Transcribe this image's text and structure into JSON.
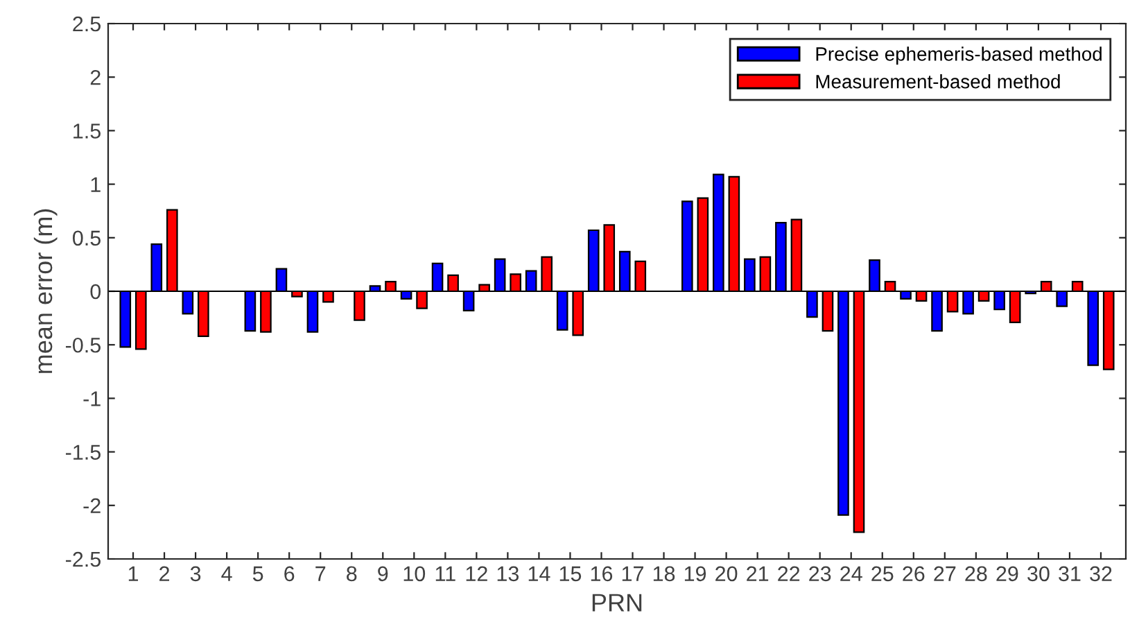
{
  "chart_data": {
    "type": "bar",
    "xlabel": "PRN",
    "ylabel": "mean error (m)",
    "categories": [
      "1",
      "2",
      "3",
      "4",
      "5",
      "6",
      "7",
      "8",
      "9",
      "10",
      "11",
      "12",
      "13",
      "14",
      "15",
      "16",
      "17",
      "18",
      "19",
      "20",
      "21",
      "22",
      "23",
      "24",
      "25",
      "26",
      "27",
      "28",
      "29",
      "30",
      "31",
      "32"
    ],
    "series": [
      {
        "name": "Precise ephemeris-based method",
        "color": "#0000ff",
        "values": [
          -0.52,
          0.44,
          -0.21,
          null,
          -0.37,
          0.21,
          -0.38,
          null,
          0.05,
          -0.07,
          0.26,
          -0.18,
          0.3,
          0.19,
          -0.36,
          0.57,
          0.37,
          null,
          0.84,
          1.09,
          0.3,
          0.64,
          -0.24,
          -2.09,
          0.29,
          -0.07,
          -0.37,
          -0.21,
          -0.17,
          -0.02,
          -0.14,
          -0.69
        ]
      },
      {
        "name": "Measurement-based method",
        "color": "#ff0000",
        "values": [
          -0.54,
          0.76,
          -0.42,
          null,
          -0.38,
          -0.05,
          -0.1,
          -0.27,
          0.09,
          -0.16,
          0.15,
          0.06,
          0.16,
          0.32,
          -0.41,
          0.62,
          0.28,
          null,
          0.87,
          1.07,
          0.32,
          0.67,
          -0.37,
          -2.25,
          0.09,
          -0.09,
          -0.19,
          -0.09,
          -0.29,
          0.09,
          0.09,
          -0.73
        ]
      }
    ],
    "ylim": [
      -2.5,
      2.5
    ],
    "yticks": [
      -2.5,
      -2,
      -1.5,
      -1,
      -0.5,
      0,
      0.5,
      1,
      1.5,
      2,
      2.5
    ],
    "legend": "top right",
    "ref_lines": [
      {
        "axis": "y",
        "value": 0,
        "color": "#000000"
      }
    ]
  }
}
